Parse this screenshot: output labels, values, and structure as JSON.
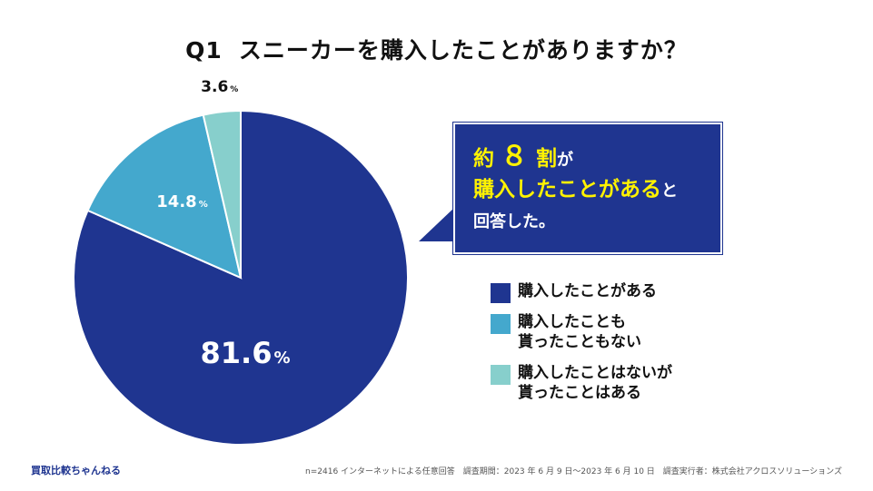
{
  "title": {
    "qnum": "Q1",
    "text": "スニーカーを購入したことがありますか？"
  },
  "chart_data": {
    "type": "pie",
    "title": "Q1 スニーカーを購入したことがありますか？",
    "start": "12 o'clock, clockwise",
    "slices": [
      {
        "label": "購入したことがある",
        "value": 81.6,
        "display": "81.6",
        "unit": "%",
        "color": "#1f3590"
      },
      {
        "label": "購入したことも\n貰ったこともない",
        "value": 14.8,
        "display": "14.8",
        "unit": "%",
        "color": "#44a8cd"
      },
      {
        "label": "購入したことはないが\n貰ったことはある",
        "value": 3.6,
        "display": "3.6",
        "unit": "%",
        "color": "#87cfcc"
      }
    ]
  },
  "callout": {
    "line1_a": "約",
    "line1_b": "８",
    "line1_c": "割",
    "line1_d": "が",
    "line2_a": "購入したことがある",
    "line2_b": "と",
    "line3": "回答した。",
    "bg_color": "#1f3590",
    "highlight_color": "#fff200"
  },
  "legend": [
    {
      "label": "購入したことがある",
      "color": "#1f3590"
    },
    {
      "label": "購入したことも\n貰ったこともない",
      "color": "#44a8cd"
    },
    {
      "label": "購入したことはないが\n貰ったことはある",
      "color": "#87cfcc"
    }
  ],
  "footer": {
    "brand": "買取比較ちゃんねる",
    "note": "n=2416 インターネットによる任意回答　調査期間：2023 年 6 月 9 日〜2023 年 6 月 10 日　調査実行者：株式会社アクロスソリューションズ"
  }
}
